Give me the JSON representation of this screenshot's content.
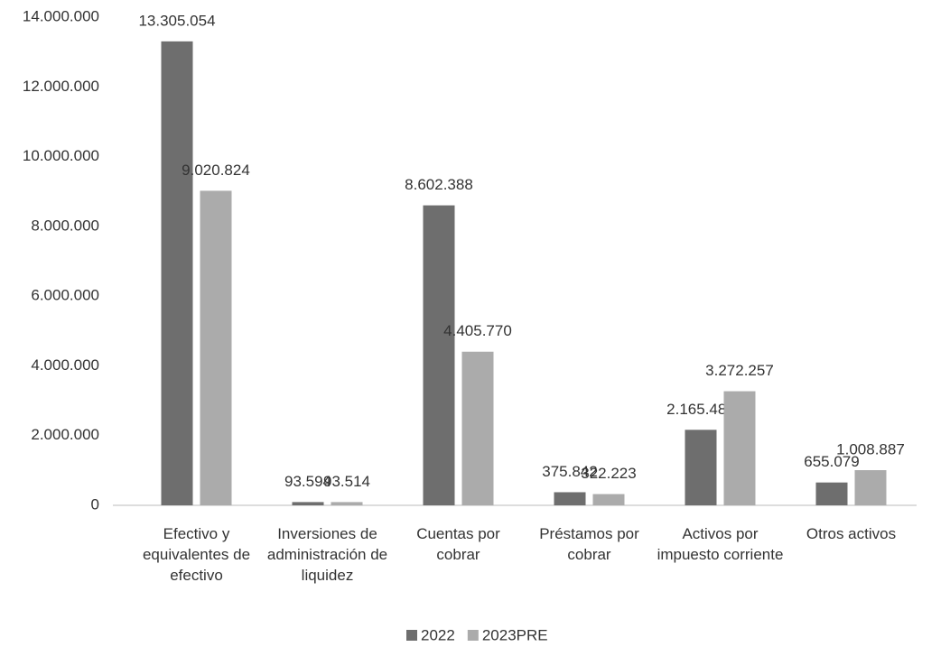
{
  "chart_data": {
    "type": "bar",
    "categories": [
      "Efectivo y equivalentes de efectivo",
      "Inversiones de administración de liquidez",
      "Cuentas por cobrar",
      "Préstamos por cobrar",
      "Activos por impuesto corriente",
      "Otros activos"
    ],
    "series": [
      {
        "name": "2022",
        "color": "#6e6e6e",
        "values": [
          13305054,
          93594,
          8602388,
          375842,
          2165484,
          655079
        ],
        "value_labels": [
          "13.305.054",
          "93.594",
          "8.602.388",
          "375.842",
          "2.165.484",
          "655.079"
        ]
      },
      {
        "name": "2023PRE",
        "color": "#ababab",
        "values": [
          9020824,
          93514,
          4405770,
          322223,
          3272257,
          1008887
        ],
        "value_labels": [
          "9.020.824",
          "93.514",
          "4.405.770",
          "322.223",
          "3.272.257",
          "1.008.887"
        ]
      }
    ],
    "ylim": [
      0,
      14000000
    ],
    "yticks": [
      {
        "value": 0,
        "label": "0"
      },
      {
        "value": 2000000,
        "label": "2.000.000"
      },
      {
        "value": 4000000,
        "label": "4.000.000"
      },
      {
        "value": 6000000,
        "label": "6.000.000"
      },
      {
        "value": 8000000,
        "label": "8.000.000"
      },
      {
        "value": 10000000,
        "label": "10.000.000"
      },
      {
        "value": 12000000,
        "label": "12.000.000"
      },
      {
        "value": 14000000,
        "label": "14.000.000"
      }
    ],
    "grid": false,
    "legend": "bottom"
  }
}
